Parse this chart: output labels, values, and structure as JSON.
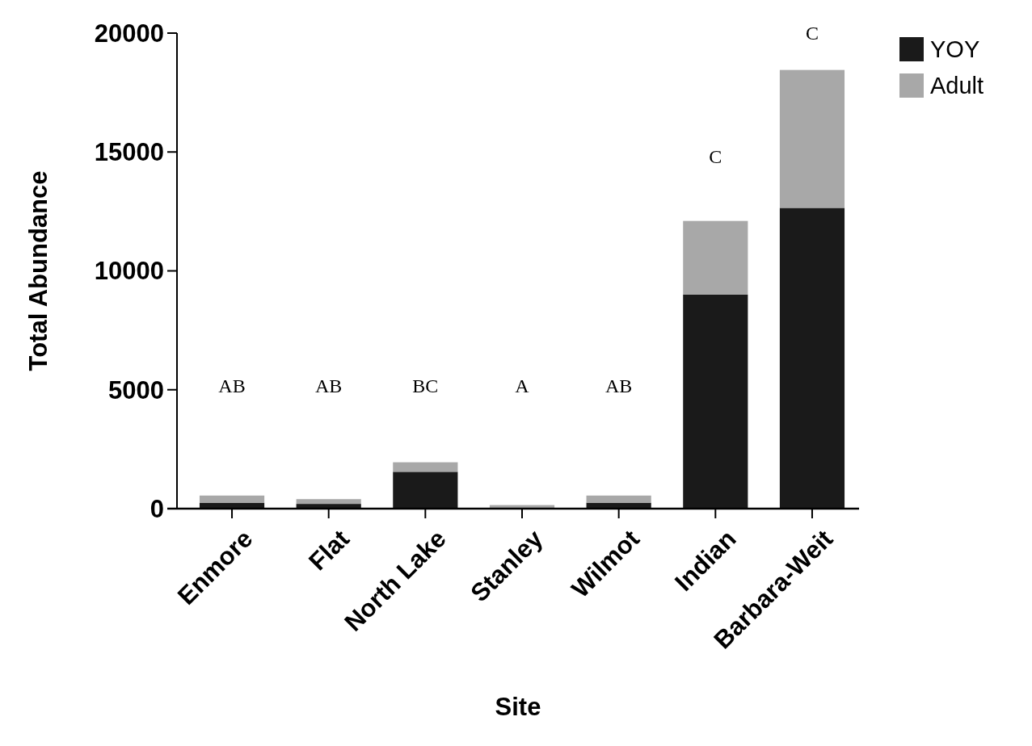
{
  "chart_data": {
    "type": "bar",
    "stacked": true,
    "xlabel": "Site",
    "ylabel": "Total Abundance",
    "categories": [
      "Enmore",
      "Flat",
      "North Lake",
      "Stanley",
      "Wilmot",
      "Indian",
      "Barbara-Weit"
    ],
    "series": [
      {
        "name": "YOY",
        "color": "#1a1a1a",
        "values": [
          250,
          200,
          1550,
          null,
          250,
          9000,
          12650
        ]
      },
      {
        "name": "Adult",
        "color": "#a8a8a8",
        "values": [
          300,
          200,
          400,
          150,
          300,
          3100,
          5800
        ]
      }
    ],
    "ylim": [
      0,
      20000
    ],
    "yticks": [
      0,
      5000,
      10000,
      15000,
      20000
    ],
    "grid": false,
    "legend": "top right",
    "annotations": [
      "AB",
      "AB",
      "BC",
      "A",
      "AB",
      "C",
      "C"
    ]
  }
}
